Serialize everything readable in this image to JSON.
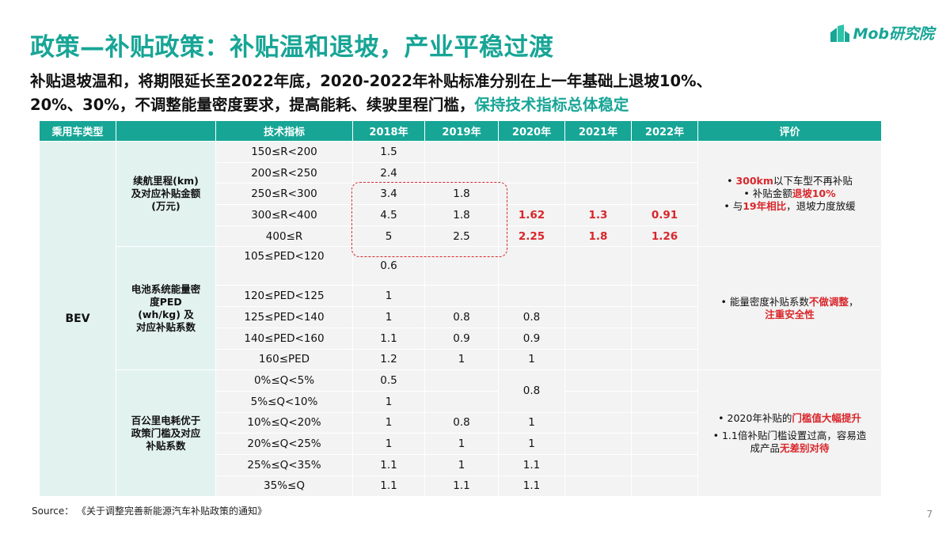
{
  "title": "政策—补贴政策：补贴温和退坡，产业平稳过渡",
  "logo_text": "Mob研究院",
  "subtitle_line1": "补贴退坡温和，将期限延长至2022年底，2020-2022年补贴标准分别在上一年基础上退坡10%、",
  "subtitle_line2_plain": "20%、30%，不调整能量密度要求，提高能耗、续驶里程门槛，",
  "subtitle_line2_highlight": "保持技术指标总体稳定",
  "table": {
    "headers": [
      "乘用车类型",
      "",
      "技术指标",
      "2018年",
      "2019年",
      "2020年",
      "2021年",
      "2022年",
      "评价"
    ],
    "vehicle_type": "BEV",
    "range_group": {
      "label": "续航里程(km)\n及对应补贴金额\n(万元)",
      "rows": [
        {
          "indicator": "150≤R<200",
          "y2018": "1.5",
          "y2019": "",
          "y2020": "",
          "y2021": "",
          "y2022": ""
        },
        {
          "indicator": "200≤R<250",
          "y2018": "2.4",
          "y2019": "",
          "y2020": "",
          "y2021": "",
          "y2022": ""
        },
        {
          "indicator": "250≤R<300",
          "y2018": "3.4",
          "y2019": "1.8",
          "y2020": "",
          "y2021": "",
          "y2022": ""
        },
        {
          "indicator": "300≤R<400",
          "y2018": "4.5",
          "y2019": "1.8",
          "y2020": "1.62",
          "y2021": "1.3",
          "y2022": "0.91"
        },
        {
          "indicator": "400≤R",
          "y2018": "5",
          "y2019": "2.5",
          "y2020": "2.25",
          "y2021": "1.8",
          "y2022": "1.26"
        }
      ],
      "eval": [
        {
          "bullet": "• ",
          "red": "300km",
          "text": "以下车型不再补贴"
        },
        {
          "bullet": "• ",
          "text": "补贴金额",
          "red": "退坡10%"
        },
        {
          "bullet": "• ",
          "text": "与",
          "red": "19年相比",
          "text2": "，退坡力度放缓"
        }
      ]
    },
    "ped_group": {
      "label": "电池系统能量密\n度PED\n(wh/kg) 及\n对应补贴系数",
      "rows": [
        {
          "indicator": "105≤PED<120",
          "y2018": "0.6",
          "y2019": "",
          "y2020": ""
        },
        {
          "indicator": "120≤PED<125",
          "y2018": "1",
          "y2019": "",
          "y2020": ""
        },
        {
          "indicator": "125≤PED<140",
          "y2018": "1",
          "y2019": "0.8",
          "y2020": "0.8"
        },
        {
          "indicator": "140≤PED<160",
          "y2018": "1.1",
          "y2019": "0.9",
          "y2020": "0.9"
        },
        {
          "indicator": "160≤PED",
          "y2018": "1.2",
          "y2019": "1",
          "y2020": "1"
        }
      ],
      "eval_text": "能量密度补贴系数",
      "eval_red1": "不做调整",
      "eval_sep": "，",
      "eval_red2": "注重安全性"
    },
    "energy_group": {
      "label": "百公里电耗优于\n政策门槛及对应\n补贴系数",
      "rows": [
        {
          "indicator": "0%≤Q<5%",
          "y2018": "0.5",
          "y2019": "",
          "y2020": "0.8"
        },
        {
          "indicator": "5%≤Q<10%",
          "y2018": "1",
          "y2019": "",
          "y2020": ""
        },
        {
          "indicator": "10%≤Q<20%",
          "y2018": "1",
          "y2019": "0.8",
          "y2020": "1"
        },
        {
          "indicator": "20%≤Q<25%",
          "y2018": "1",
          "y2019": "1",
          "y2020": "1"
        },
        {
          "indicator": "25%≤Q<35%",
          "y2018": "1.1",
          "y2019": "1",
          "y2020": "1.1"
        },
        {
          "indicator": "35%≤Q",
          "y2018": "1.1",
          "y2019": "1.1",
          "y2020": "1.1"
        }
      ],
      "eval1_text": "2020年补贴的",
      "eval1_red": "门槛值大幅提升",
      "eval2_text": "1.1倍补贴门槛设置过高，容易造成产品",
      "eval2_red": "无差别对待"
    }
  },
  "source": "Source：  《关于调整完善新能源汽车补贴政策的通知》",
  "page_number": "7",
  "colors": {
    "accent": "#17a596",
    "highlight_red": "#d9262b",
    "light_teal": "#e2f2ef",
    "cell_gray": "#f3f3f3"
  }
}
